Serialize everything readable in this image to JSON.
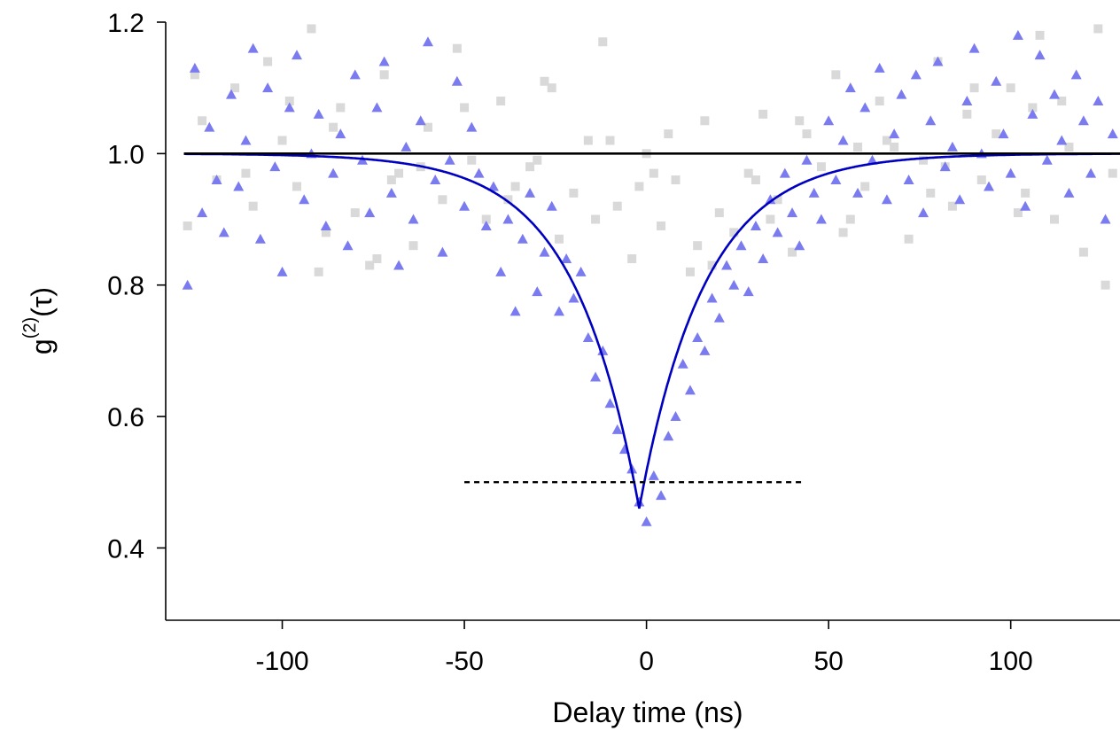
{
  "chart_data": {
    "type": "scatter",
    "title": "",
    "xlabel": "Delay time (ns)",
    "ylabel": {
      "base": "g",
      "superscript": "(2)",
      "argument": "(τ)"
    },
    "xlim": [
      -132,
      130
    ],
    "ylim": [
      0.29,
      1.2
    ],
    "xticks": [
      -100,
      -50,
      0,
      50,
      100
    ],
    "yticks": [
      0.4,
      0.6,
      0.8,
      1.0,
      1.2
    ],
    "xtick_labels": [
      "-100",
      "-50",
      "0",
      "50",
      "100"
    ],
    "ytick_labels": [
      "0.4",
      "0.6",
      "0.8",
      "1.0",
      "1.2"
    ],
    "grid": false,
    "legend": "none",
    "colors": {
      "triangles": "#7b7bf0",
      "squares": "#d9d9d9",
      "fit": "#0000c0",
      "reference": "#000000"
    },
    "series": [
      {
        "marker": "square",
        "x": [
          -126,
          -122,
          -118,
          -113,
          -108,
          -104,
          -100,
          -96,
          -92,
          -88,
          -84,
          -80,
          -76,
          -72,
          -68,
          -64,
          -60,
          -56,
          -52,
          -48,
          -44,
          -40,
          -36,
          -32,
          -28,
          -24,
          -20,
          -16,
          -12,
          -8,
          -4,
          0,
          4,
          8,
          12,
          16,
          20,
          24,
          28,
          32,
          36,
          40,
          44,
          48,
          52,
          56,
          60,
          64,
          68,
          72,
          76,
          80,
          84,
          88,
          92,
          96,
          100,
          104,
          108,
          112,
          116,
          120,
          124,
          128,
          -124,
          -110,
          -98,
          -86,
          -74,
          -62,
          -50,
          -38,
          -26,
          -14,
          -2,
          6,
          18,
          30,
          42,
          54,
          66,
          78,
          90,
          102,
          114,
          126,
          -90,
          -70,
          -30,
          -10,
          2,
          14,
          34,
          58,
          82,
          106
        ],
        "y": [
          0.89,
          1.05,
          0.96,
          1.1,
          0.92,
          1.14,
          1.02,
          0.95,
          1.19,
          0.88,
          1.07,
          0.91,
          0.83,
          1.12,
          0.97,
          0.86,
          1.04,
          0.93,
          1.16,
          0.99,
          0.9,
          1.08,
          0.95,
          0.98,
          1.11,
          0.87,
          0.94,
          1.02,
          1.17,
          0.92,
          0.84,
          1.0,
          0.89,
          0.96,
          0.82,
          1.05,
          0.91,
          0.88,
          0.97,
          1.06,
          0.93,
          0.85,
          1.03,
          0.98,
          1.12,
          0.9,
          0.95,
          1.08,
          1.01,
          0.87,
          0.99,
          1.14,
          0.92,
          1.06,
          0.96,
          1.03,
          1.1,
          0.94,
          1.18,
          0.9,
          1.01,
          0.85,
          1.19,
          0.97,
          1.12,
          0.97,
          1.08,
          1.04,
          0.84,
          0.98,
          1.07,
          0.93,
          1.1,
          0.9,
          0.95,
          1.03,
          0.83,
          0.96,
          1.05,
          0.88,
          1.02,
          0.94,
          1.1,
          0.91,
          1.08,
          0.8,
          0.82,
          0.96,
          0.99,
          1.02,
          0.97,
          0.86,
          0.9,
          1.01,
          0.98,
          1.07
        ]
      },
      {
        "marker": "triangle",
        "x": [
          -126,
          -124,
          -122,
          -120,
          -118,
          -116,
          -114,
          -112,
          -110,
          -108,
          -106,
          -104,
          -102,
          -100,
          -98,
          -96,
          -94,
          -92,
          -90,
          -88,
          -86,
          -84,
          -82,
          -80,
          -78,
          -76,
          -74,
          -72,
          -70,
          -68,
          -66,
          -64,
          -62,
          -60,
          -58,
          -56,
          -54,
          -52,
          -50,
          -48,
          -46,
          -44,
          -42,
          -40,
          -38,
          -36,
          -34,
          -32,
          -30,
          -28,
          -26,
          -24,
          -22,
          -20,
          -18,
          -16,
          -14,
          -12,
          -10,
          -8,
          -6,
          -4,
          -2,
          0,
          2,
          4,
          6,
          8,
          10,
          12,
          14,
          16,
          18,
          20,
          22,
          24,
          26,
          28,
          30,
          32,
          34,
          36,
          38,
          40,
          42,
          44,
          46,
          48,
          50,
          52,
          54,
          56,
          58,
          60,
          62,
          64,
          66,
          68,
          70,
          72,
          74,
          76,
          78,
          80,
          82,
          84,
          86,
          88,
          90,
          92,
          94,
          96,
          98,
          100,
          102,
          104,
          106,
          108,
          110,
          112,
          114,
          116,
          118,
          120,
          122,
          124,
          126,
          128
        ],
        "y": [
          0.8,
          1.13,
          0.91,
          1.04,
          0.96,
          0.88,
          1.09,
          0.95,
          1.02,
          1.16,
          0.87,
          1.1,
          0.98,
          0.82,
          1.07,
          1.15,
          0.93,
          1.0,
          1.06,
          0.89,
          0.97,
          1.03,
          0.86,
          1.12,
          0.99,
          0.91,
          1.07,
          1.14,
          0.94,
          0.83,
          1.01,
          0.9,
          1.05,
          1.17,
          0.96,
          0.85,
          0.99,
          1.11,
          0.92,
          1.04,
          0.97,
          0.89,
          0.95,
          0.82,
          0.9,
          0.76,
          0.87,
          0.94,
          0.79,
          0.85,
          0.92,
          0.76,
          0.84,
          0.78,
          0.82,
          0.72,
          0.66,
          0.7,
          0.62,
          0.58,
          0.55,
          0.52,
          0.47,
          0.44,
          0.51,
          0.48,
          0.57,
          0.6,
          0.68,
          0.64,
          0.72,
          0.7,
          0.78,
          0.75,
          0.83,
          0.8,
          0.86,
          0.79,
          0.89,
          0.84,
          0.93,
          0.88,
          0.97,
          0.91,
          0.86,
          0.99,
          0.94,
          0.9,
          1.05,
          0.96,
          1.02,
          1.1,
          0.94,
          1.07,
          0.99,
          1.13,
          0.93,
          1.03,
          1.09,
          0.96,
          1.12,
          0.91,
          1.05,
          1.14,
          0.98,
          1.01,
          0.93,
          1.08,
          1.16,
          1.0,
          0.95,
          1.11,
          1.03,
          0.97,
          1.18,
          0.92,
          1.06,
          1.15,
          0.99,
          1.09,
          1.02,
          0.94,
          1.12,
          1.05,
          0.97,
          1.08,
          0.9,
          1.03
        ]
      }
    ],
    "fit_curve": {
      "formula": "1 - a*exp(-|x - x0|/tau)",
      "a": 0.54,
      "x0": -2,
      "tau": 18
    },
    "reference_lines": [
      {
        "y": 1.0,
        "x_start": -127,
        "x_end": 130,
        "style": "solid"
      },
      {
        "y": 0.5,
        "x_start": -50,
        "x_end": 43,
        "style": "dashed"
      }
    ]
  }
}
